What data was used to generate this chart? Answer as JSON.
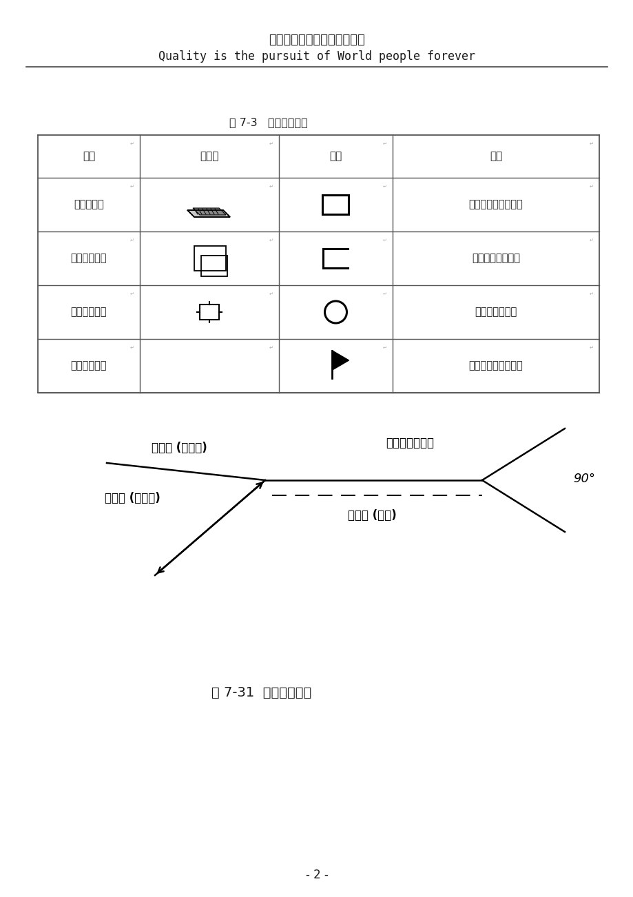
{
  "title_cn": "质量是沃得人永远不变的追求",
  "title_en": "Quality is the pursuit of World people forever",
  "table_title": "表 7-3   焊缝补充符号",
  "table_headers": [
    "名称",
    "示意图",
    "符号",
    "说明"
  ],
  "row_names": [
    "带垫板符号",
    "三面焊缝符号",
    "周围焊缝符号",
    "现场焊接符号"
  ],
  "row_descs": [
    "表明焊缝底部有垫板",
    "表示三面带有焊缝",
    "表示四周有焊缝",
    "表示在现场进行焊接"
  ],
  "diagram_labels": {
    "baseline_solid": "基准线 (细实线)",
    "arrow_line": "箭头线 (细实线)",
    "baseline_dashed": "基准线 (虚线)",
    "tail_note": "必要时加画尾部",
    "angle": "90°"
  },
  "fig_caption": "图 7-31  焊缝的指引线",
  "page_number": "- 2 -",
  "bg_color": "#ffffff",
  "text_color": "#1a1a1a",
  "table_line_color": "#555555"
}
